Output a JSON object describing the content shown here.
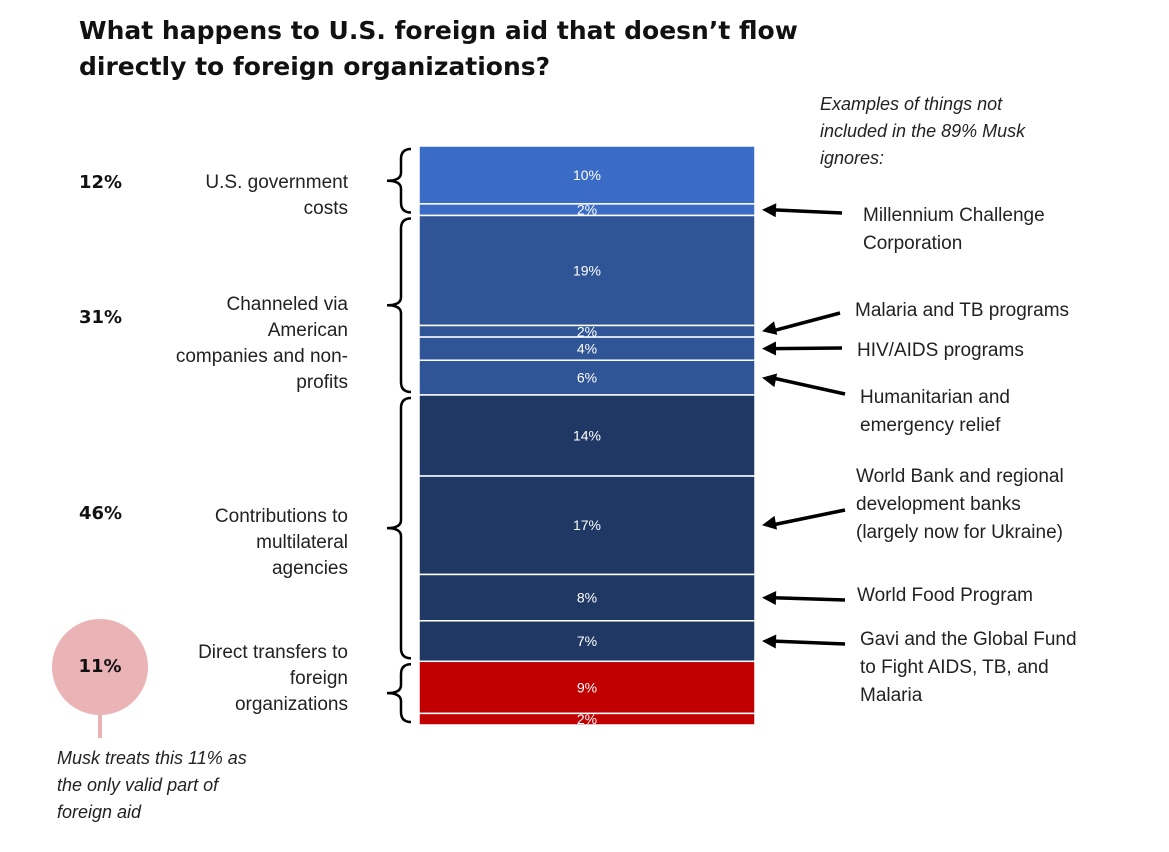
{
  "title_line1": "What happens to U.S. foreign aid that doesn’t flow",
  "title_line2": "directly to foreign organizations?",
  "colors": {
    "gov": "#3a6cc6",
    "channeled": "#2f5597",
    "multilateral": "#203864",
    "direct": "#c00000",
    "bubble": "#eab3b6",
    "arrow": "#000000",
    "bracket": "#000000"
  },
  "chart_data": {
    "type": "bar",
    "stacked": true,
    "unit": "%",
    "segments": [
      {
        "label": "10%",
        "value": 10,
        "group": "gov"
      },
      {
        "label": "2%",
        "value": 2,
        "group": "gov"
      },
      {
        "label": "19%",
        "value": 19,
        "group": "channeled"
      },
      {
        "label": "2%",
        "value": 2,
        "group": "channeled"
      },
      {
        "label": "4%",
        "value": 4,
        "group": "channeled"
      },
      {
        "label": "6%",
        "value": 6,
        "group": "channeled"
      },
      {
        "label": "14%",
        "value": 14,
        "group": "multilateral"
      },
      {
        "label": "17%",
        "value": 17,
        "group": "multilateral"
      },
      {
        "label": "8%",
        "value": 8,
        "group": "multilateral"
      },
      {
        "label": "7%",
        "value": 7,
        "group": "multilateral"
      },
      {
        "label": "9%",
        "value": 9,
        "group": "direct"
      },
      {
        "label": "2%",
        "value": 2,
        "group": "direct"
      }
    ],
    "groups": [
      {
        "id": "gov",
        "percent": "12%",
        "lines": [
          "U.S. government",
          "costs"
        ]
      },
      {
        "id": "channeled",
        "percent": "31%",
        "lines": [
          "Channeled via",
          "American",
          "companies and non-",
          "profits"
        ]
      },
      {
        "id": "multilateral",
        "percent": "46%",
        "lines": [
          "Contributions to",
          "multilateral",
          "agencies"
        ]
      },
      {
        "id": "direct",
        "percent": "11%",
        "lines": [
          "Direct transfers to",
          "foreign",
          "organizations"
        ]
      }
    ],
    "annotations_header": [
      "Examples of things not",
      "included in the 89% Musk",
      "ignores:"
    ],
    "annotations": [
      {
        "segment": 1,
        "lines": [
          "Millennium Challenge",
          "Corporation"
        ]
      },
      {
        "segment": 3,
        "lines": [
          "Malaria and TB programs"
        ]
      },
      {
        "segment": 4,
        "lines": [
          "HIV/AIDS programs"
        ]
      },
      {
        "segment": 5,
        "lines": [
          "Humanitarian and",
          "emergency relief"
        ]
      },
      {
        "segment": 7,
        "lines": [
          "World Bank and regional",
          "development banks",
          "(largely now for Ukraine)"
        ]
      },
      {
        "segment": 8,
        "lines": [
          "World Food Program"
        ]
      },
      {
        "segment": 9,
        "lines": [
          "Gavi and the Global Fund",
          "to Fight AIDS, TB, and",
          "Malaria"
        ]
      }
    ],
    "footnote": [
      "Musk treats this 11% as",
      "the only valid part of",
      "foreign aid"
    ]
  }
}
